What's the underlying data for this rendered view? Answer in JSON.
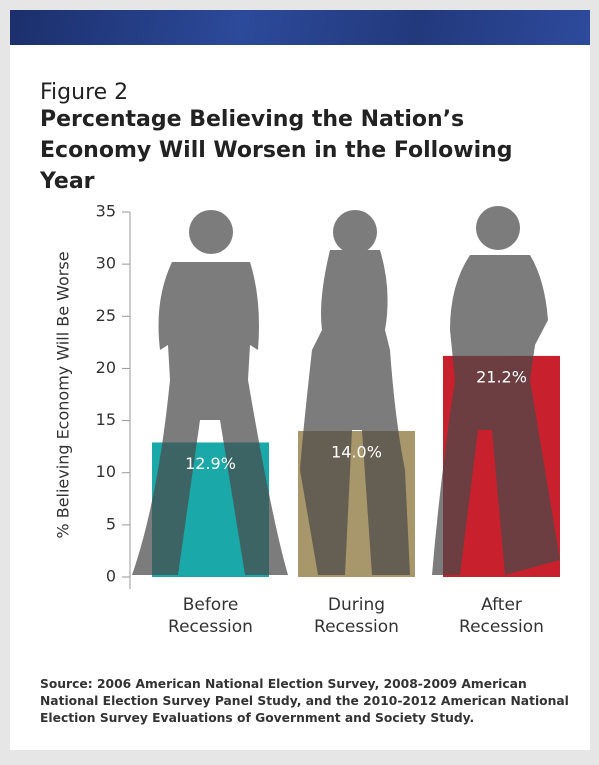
{
  "chart_data": {
    "type": "bar",
    "figure_label": "Figure 2",
    "title": "Percentage Believing the Nation’s Economy Will Worsen in the Following Year",
    "y_label": "% Believing Economy Will Be Worse",
    "categories": [
      "Before Recession",
      "During Recession",
      "After Recession"
    ],
    "values": [
      12.9,
      14.0,
      21.2
    ],
    "value_labels": [
      "12.9%",
      "14.0%",
      "21.2%"
    ],
    "colors": [
      "#1aa9a8",
      "#a8976a",
      "#c8202c"
    ],
    "ylim": [
      0,
      35
    ],
    "yticks": [
      0,
      5,
      10,
      15,
      20,
      25,
      30,
      35
    ],
    "source": "Source: 2006 American National Election Survey, 2008-2009 American National Election Survey Panel Study, and the 2010-2012 American National Election Survey Evaluations of Government and Society Study."
  }
}
